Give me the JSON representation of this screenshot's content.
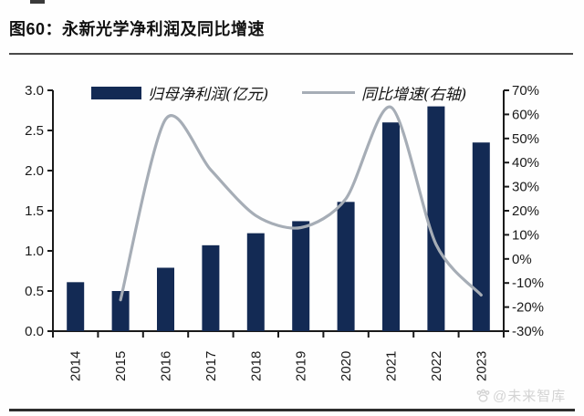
{
  "header": {
    "title": "图60：永新光学净利润及同比增速"
  },
  "chart_data": {
    "type": "bar+line",
    "title": "永新光学净利润及同比增速",
    "categories": [
      "2014",
      "2015",
      "2016",
      "2017",
      "2018",
      "2019",
      "2020",
      "2021",
      "2022",
      "2023"
    ],
    "series": [
      {
        "name": "归母净利润(亿元)",
        "type": "bar",
        "axis": "left",
        "color": "#132a54",
        "values": [
          0.61,
          0.5,
          0.79,
          1.07,
          1.22,
          1.37,
          1.61,
          2.6,
          2.8,
          2.35
        ]
      },
      {
        "name": "同比增速(右轴)",
        "type": "line",
        "axis": "right",
        "unit": "%",
        "color": "#a6adb6",
        "values": [
          null,
          -17,
          58,
          37,
          18,
          13,
          25,
          63,
          6,
          -15
        ]
      }
    ],
    "left_axis": {
      "min": 0,
      "max": 3,
      "labels": [
        "0.0",
        "0.5",
        "1.0",
        "1.5",
        "2.0",
        "2.5",
        "3.0"
      ]
    },
    "right_axis": {
      "min": -30,
      "max": 70,
      "labels": [
        "-30%",
        "-20%",
        "-10%",
        "0%",
        "10%",
        "20%",
        "30%",
        "40%",
        "50%",
        "60%",
        "70%"
      ]
    },
    "legend_position": "top",
    "grid": false,
    "axis_color": "#1a1a1a"
  },
  "watermark": {
    "icon": "paw-icon",
    "text": "@未来智库",
    "color": "#d3d3d3"
  }
}
